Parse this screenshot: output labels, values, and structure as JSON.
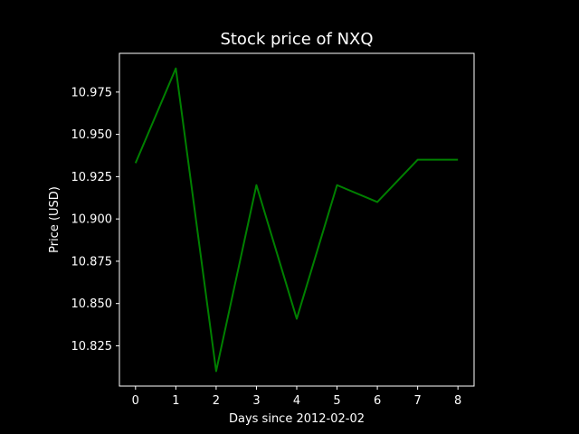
{
  "chart_data": {
    "type": "line",
    "title": "Stock price of NXQ",
    "xlabel": "Days since 2012-02-02",
    "ylabel": "Price (USD)",
    "x": [
      0,
      1,
      2,
      3,
      4,
      5,
      6,
      7,
      8
    ],
    "series": [
      {
        "values": [
          10.933,
          10.989,
          10.81,
          10.92,
          10.841,
          10.92,
          10.91,
          10.935,
          10.935
        ],
        "color": "#008000"
      }
    ],
    "xticks": [
      "0",
      "1",
      "2",
      "3",
      "4",
      "5",
      "6",
      "7",
      "8"
    ],
    "yticks": [
      "10.825",
      "10.850",
      "10.875",
      "10.900",
      "10.925",
      "10.950",
      "10.975"
    ],
    "xlim": [
      -0.4,
      8.4
    ],
    "ylim": [
      10.8012,
      10.9979
    ],
    "grid": false,
    "background": "#000000",
    "foreground": "#ffffff"
  }
}
